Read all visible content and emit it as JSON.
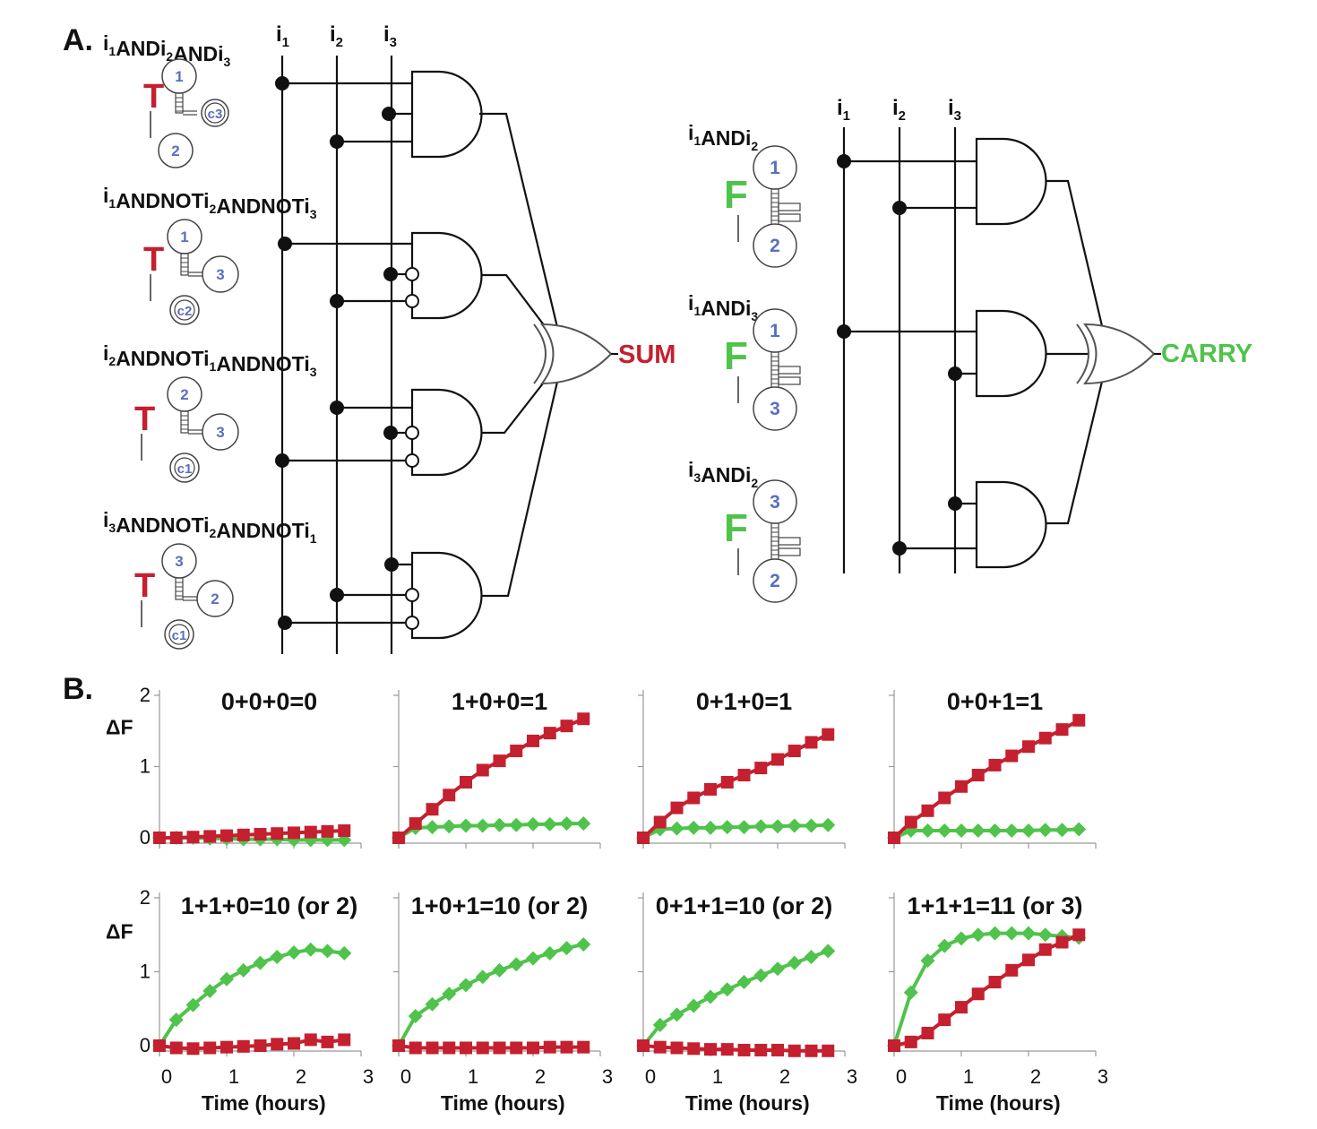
{
  "panel_a": {
    "label": "A.",
    "bus_labels_sum": [
      "i",
      "i",
      "i"
    ],
    "bus_labels_carry": [
      "i",
      "i",
      "i"
    ],
    "bus_subscripts": [
      "1",
      "2",
      "3"
    ],
    "sum_output": "SUM",
    "carry_output": "CARRY",
    "sum_gates": [
      {
        "label": [
          [
            "i",
            "1"
          ],
          [
            "AND",
            ""
          ],
          [
            "i",
            "2"
          ],
          [
            "AND",
            ""
          ],
          [
            "i",
            "3"
          ]
        ],
        "reporter": "T",
        "top": "1",
        "side": "c3",
        "bottom": "2",
        "loop": "c3"
      },
      {
        "label": [
          [
            "i",
            "1"
          ],
          [
            "ANDNOT",
            ""
          ],
          [
            "i",
            "2"
          ],
          [
            "ANDNOT",
            ""
          ],
          [
            "i",
            "3"
          ]
        ],
        "reporter": "T",
        "top": "1",
        "side": "3",
        "bottom": "c2",
        "loop": "c2"
      },
      {
        "label": [
          [
            "i",
            "2"
          ],
          [
            "ANDNOT",
            ""
          ],
          [
            "i",
            "1"
          ],
          [
            "ANDNOT",
            ""
          ],
          [
            "i",
            "3"
          ]
        ],
        "reporter": "T",
        "top": "2",
        "side": "3",
        "bottom": "c1",
        "loop": "c1"
      },
      {
        "label": [
          [
            "i",
            "3"
          ],
          [
            "ANDNOT",
            ""
          ],
          [
            "i",
            "2"
          ],
          [
            "ANDNOT",
            ""
          ],
          [
            "i",
            "1"
          ]
        ],
        "reporter": "T",
        "top": "3",
        "side": "2",
        "bottom": "c1",
        "loop": "c1"
      }
    ],
    "carry_gates": [
      {
        "label": [
          [
            "i",
            "1"
          ],
          [
            "AND",
            ""
          ],
          [
            "i",
            "2"
          ]
        ],
        "reporter": "F",
        "top": "1",
        "bottom": "2"
      },
      {
        "label": [
          [
            "i",
            "1"
          ],
          [
            "AND",
            ""
          ],
          [
            "i",
            "3"
          ]
        ],
        "reporter": "F",
        "top": "1",
        "bottom": "3"
      },
      {
        "label": [
          [
            "i",
            "3"
          ],
          [
            "AND",
            ""
          ],
          [
            "i",
            "2"
          ]
        ],
        "reporter": "F",
        "top": "3",
        "bottom": "2"
      }
    ]
  },
  "panel_b": {
    "label": "B.",
    "ylabel": "ΔF",
    "xlabel": "Time (hours)",
    "colors": {
      "sum": "#c4202f",
      "carry": "#4fc34b"
    }
  },
  "chart_data": [
    {
      "type": "line",
      "title": "0+0+0=0",
      "xlabel": "",
      "ylabel": "ΔF",
      "xlim": [
        0,
        3
      ],
      "ylim": [
        0,
        2
      ],
      "yticks": [
        "0",
        "1",
        "2"
      ],
      "xticks": [],
      "x": [
        0,
        0.25,
        0.5,
        0.75,
        1,
        1.25,
        1.5,
        1.75,
        2,
        2.25,
        2.5,
        2.75
      ],
      "series": [
        {
          "values": [
            0,
            0,
            0,
            -0.01,
            -0.01,
            -0.02,
            -0.02,
            -0.02,
            -0.03,
            -0.03,
            -0.03,
            -0.03
          ],
          "color": "#4fc34b",
          "marker": "diamond"
        },
        {
          "values": [
            0,
            0,
            0.01,
            0.02,
            0.03,
            0.04,
            0.05,
            0.06,
            0.07,
            0.08,
            0.09,
            0.1
          ],
          "color": "#c4202f",
          "marker": "square"
        }
      ]
    },
    {
      "type": "line",
      "title": "1+0+0=1",
      "xlabel": "",
      "ylabel": "",
      "xlim": [
        0,
        3
      ],
      "ylim": [
        0,
        2
      ],
      "yticks": [],
      "xticks": [],
      "x": [
        0,
        0.25,
        0.5,
        0.75,
        1,
        1.25,
        1.5,
        1.75,
        2,
        2.25,
        2.5,
        2.75
      ],
      "series": [
        {
          "values": [
            0,
            0.14,
            0.15,
            0.16,
            0.17,
            0.17,
            0.18,
            0.18,
            0.19,
            0.19,
            0.2,
            0.2
          ],
          "color": "#4fc34b",
          "marker": "diamond"
        },
        {
          "values": [
            0,
            0.2,
            0.4,
            0.6,
            0.78,
            0.95,
            1.08,
            1.22,
            1.36,
            1.47,
            1.57,
            1.67
          ],
          "color": "#c4202f",
          "marker": "square"
        }
      ]
    },
    {
      "type": "line",
      "title": "0+1+0=1",
      "xlabel": "",
      "ylabel": "",
      "xlim": [
        0,
        3
      ],
      "ylim": [
        0,
        2
      ],
      "yticks": [],
      "xticks": [],
      "x": [
        0,
        0.25,
        0.5,
        0.75,
        1,
        1.25,
        1.5,
        1.75,
        2,
        2.25,
        2.5,
        2.75
      ],
      "series": [
        {
          "values": [
            0,
            0.12,
            0.13,
            0.14,
            0.14,
            0.15,
            0.15,
            0.16,
            0.16,
            0.17,
            0.17,
            0.18
          ],
          "color": "#4fc34b",
          "marker": "diamond"
        },
        {
          "values": [
            0,
            0.22,
            0.42,
            0.56,
            0.68,
            0.78,
            0.88,
            0.98,
            1.1,
            1.22,
            1.34,
            1.45
          ],
          "color": "#c4202f",
          "marker": "square"
        }
      ]
    },
    {
      "type": "line",
      "title": "0+0+1=1",
      "xlabel": "",
      "ylabel": "",
      "xlim": [
        0,
        3
      ],
      "ylim": [
        0,
        2
      ],
      "yticks": [],
      "xticks": [],
      "x": [
        0,
        0.25,
        0.5,
        0.75,
        1,
        1.25,
        1.5,
        1.75,
        2,
        2.25,
        2.5,
        2.75
      ],
      "series": [
        {
          "values": [
            0,
            0.1,
            0.1,
            0.1,
            0.1,
            0.1,
            0.1,
            0.1,
            0.1,
            0.11,
            0.11,
            0.12
          ],
          "color": "#4fc34b",
          "marker": "diamond"
        },
        {
          "values": [
            0,
            0.22,
            0.38,
            0.56,
            0.72,
            0.88,
            1.02,
            1.15,
            1.28,
            1.4,
            1.52,
            1.65
          ],
          "color": "#c4202f",
          "marker": "square"
        }
      ]
    },
    {
      "type": "line",
      "title": "1+1+0=10 (or 2)",
      "xlabel": "Time (hours)",
      "ylabel": "ΔF",
      "xlim": [
        0,
        3
      ],
      "ylim": [
        0,
        2
      ],
      "yticks": [
        "0",
        "1",
        "2"
      ],
      "xticks": [
        "0",
        "1",
        "2",
        "3"
      ],
      "x": [
        0,
        0.25,
        0.5,
        0.75,
        1,
        1.25,
        1.5,
        1.75,
        2,
        2.25,
        2.5,
        2.75
      ],
      "series": [
        {
          "values": [
            0,
            0.35,
            0.55,
            0.74,
            0.9,
            1.02,
            1.12,
            1.2,
            1.26,
            1.3,
            1.28,
            1.25
          ],
          "color": "#4fc34b",
          "marker": "diamond"
        },
        {
          "values": [
            0,
            -0.03,
            -0.04,
            -0.03,
            -0.02,
            -0.01,
            0,
            0.02,
            0.03,
            0.08,
            0.05,
            0.08
          ],
          "color": "#c4202f",
          "marker": "square"
        }
      ]
    },
    {
      "type": "line",
      "title": "1+0+1=10 (or 2)",
      "xlabel": "Time (hours)",
      "ylabel": "",
      "xlim": [
        0,
        3
      ],
      "ylim": [
        0,
        2
      ],
      "yticks": [],
      "xticks": [
        "0",
        "1",
        "2",
        "3"
      ],
      "x": [
        0,
        0.25,
        0.5,
        0.75,
        1,
        1.25,
        1.5,
        1.75,
        2,
        2.25,
        2.5,
        2.75
      ],
      "series": [
        {
          "values": [
            0,
            0.4,
            0.56,
            0.7,
            0.82,
            0.93,
            1.02,
            1.1,
            1.18,
            1.25,
            1.32,
            1.37
          ],
          "color": "#4fc34b",
          "marker": "diamond"
        },
        {
          "values": [
            0,
            -0.03,
            -0.03,
            -0.03,
            -0.03,
            -0.03,
            -0.03,
            -0.03,
            -0.03,
            -0.02,
            -0.02,
            -0.02
          ],
          "color": "#c4202f",
          "marker": "square"
        }
      ]
    },
    {
      "type": "line",
      "title": "0+1+1=10 (or 2)",
      "xlabel": "Time (hours)",
      "ylabel": "",
      "xlim": [
        0,
        3
      ],
      "ylim": [
        0,
        2
      ],
      "yticks": [],
      "xticks": [
        "0",
        "1",
        "2",
        "3"
      ],
      "x": [
        0,
        0.25,
        0.5,
        0.75,
        1,
        1.25,
        1.5,
        1.75,
        2,
        2.25,
        2.5,
        2.75
      ],
      "series": [
        {
          "values": [
            0,
            0.28,
            0.42,
            0.54,
            0.66,
            0.76,
            0.86,
            0.95,
            1.04,
            1.12,
            1.2,
            1.28
          ],
          "color": "#4fc34b",
          "marker": "diamond"
        },
        {
          "values": [
            0,
            -0.02,
            -0.03,
            -0.04,
            -0.05,
            -0.05,
            -0.06,
            -0.06,
            -0.06,
            -0.07,
            -0.07,
            -0.07
          ],
          "color": "#c4202f",
          "marker": "square"
        }
      ]
    },
    {
      "type": "line",
      "title": "1+1+1=11 (or 3)",
      "xlabel": "Time (hours)",
      "ylabel": "",
      "xlim": [
        0,
        3
      ],
      "ylim": [
        0,
        2
      ],
      "yticks": [],
      "xticks": [
        "0",
        "1",
        "2",
        "3"
      ],
      "x": [
        0,
        0.25,
        0.5,
        0.75,
        1,
        1.25,
        1.5,
        1.75,
        2,
        2.25,
        2.5,
        2.75
      ],
      "series": [
        {
          "values": [
            0,
            0.72,
            1.15,
            1.35,
            1.45,
            1.5,
            1.52,
            1.52,
            1.52,
            1.5,
            1.48,
            1.46
          ],
          "color": "#4fc34b",
          "marker": "diamond"
        },
        {
          "values": [
            0,
            0.05,
            0.17,
            0.35,
            0.52,
            0.7,
            0.86,
            1.02,
            1.16,
            1.3,
            1.4,
            1.5
          ],
          "color": "#c4202f",
          "marker": "square"
        }
      ]
    }
  ]
}
